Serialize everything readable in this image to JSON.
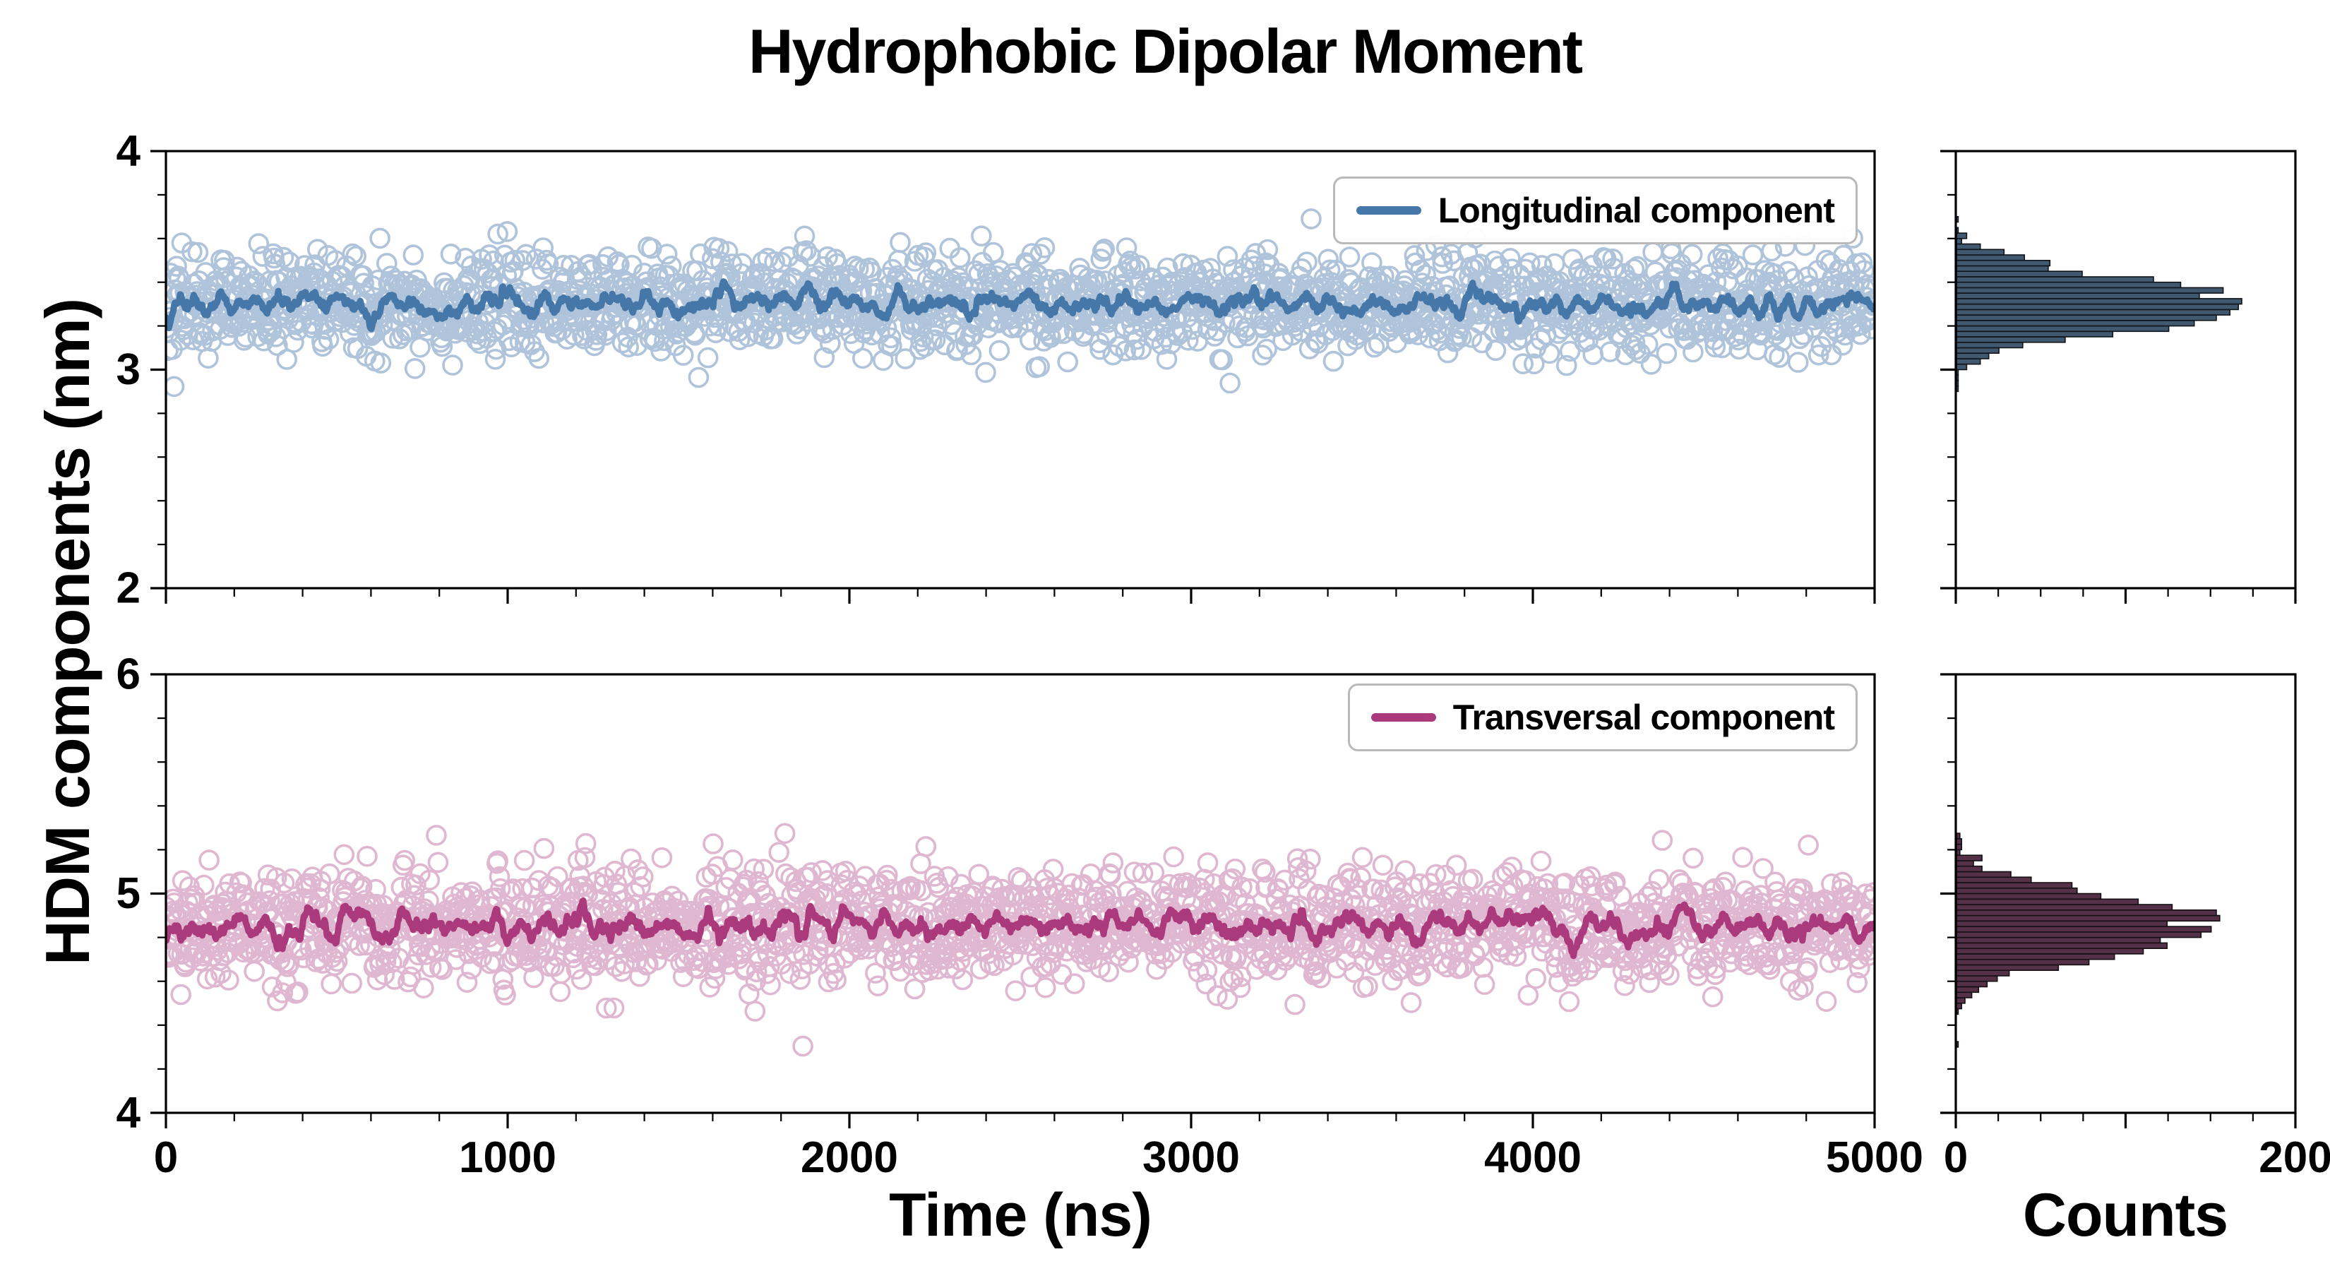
{
  "title": "Hydrophobic Dipolar Moment",
  "labels": {
    "x": "Time (ns)",
    "y": "HDM components (nm)",
    "counts": "Counts"
  },
  "chart_data": [
    {
      "type": "scatter",
      "name": "Longitudinal component",
      "legend_label": "Longitudinal component",
      "xlabel": "Time (ns)",
      "ylabel": "HDM components (nm)",
      "x_range": [
        0,
        5000
      ],
      "y_range": [
        2,
        4
      ],
      "x_ticks": [
        0,
        1000,
        2000,
        3000,
        4000,
        5000
      ],
      "y_ticks": [
        4,
        3,
        2
      ],
      "x_minor_step": 200,
      "y_minor_step": 0.2,
      "grid": false,
      "legend_position": "upper right",
      "summary": {
        "mean": 3.3,
        "std": 0.115,
        "n_points": 2000,
        "trend": "stationary",
        "mean_line": "moving average around 3.3 nm"
      },
      "histogram": {
        "orientation": "horizontal",
        "bin_width": 0.025,
        "x_range": [
          0,
          200
        ],
        "x_ticks": [
          0,
          100,
          200
        ],
        "x_tick_labels": [
          "0",
          "",
          "200"
        ],
        "peak_count": 170,
        "peak_at": 3.3
      },
      "colors": {
        "scatter": "#6f95bd",
        "line": "#4577a9",
        "hist_fill": "#41596f",
        "hist_edge": "#101418"
      }
    },
    {
      "type": "scatter",
      "name": "Transversal component",
      "legend_label": "Transversal component",
      "xlabel": "Time (ns)",
      "ylabel": "HDM components (nm)",
      "x_range": [
        0,
        5000
      ],
      "y_range": [
        4,
        6
      ],
      "x_ticks": [
        0,
        1000,
        2000,
        3000,
        4000,
        5000
      ],
      "y_ticks": [
        6,
        5,
        4
      ],
      "x_minor_step": 200,
      "y_minor_step": 0.2,
      "grid": false,
      "legend_position": "upper right",
      "summary": {
        "mean": 4.85,
        "std": 0.13,
        "n_points": 2000,
        "trend": "stationary",
        "mean_line": "moving average around 4.85 nm"
      },
      "histogram": {
        "orientation": "horizontal",
        "bin_width": 0.025,
        "x_range": [
          0,
          200
        ],
        "x_ticks": [
          0,
          100,
          200
        ],
        "x_tick_labels": [
          "0",
          "",
          "200"
        ],
        "peak_count": 155,
        "peak_at": 4.85
      },
      "colors": {
        "scatter": "#c87eaa",
        "line": "#ab3a7c",
        "hist_fill": "#553147",
        "hist_edge": "#141014"
      }
    }
  ]
}
